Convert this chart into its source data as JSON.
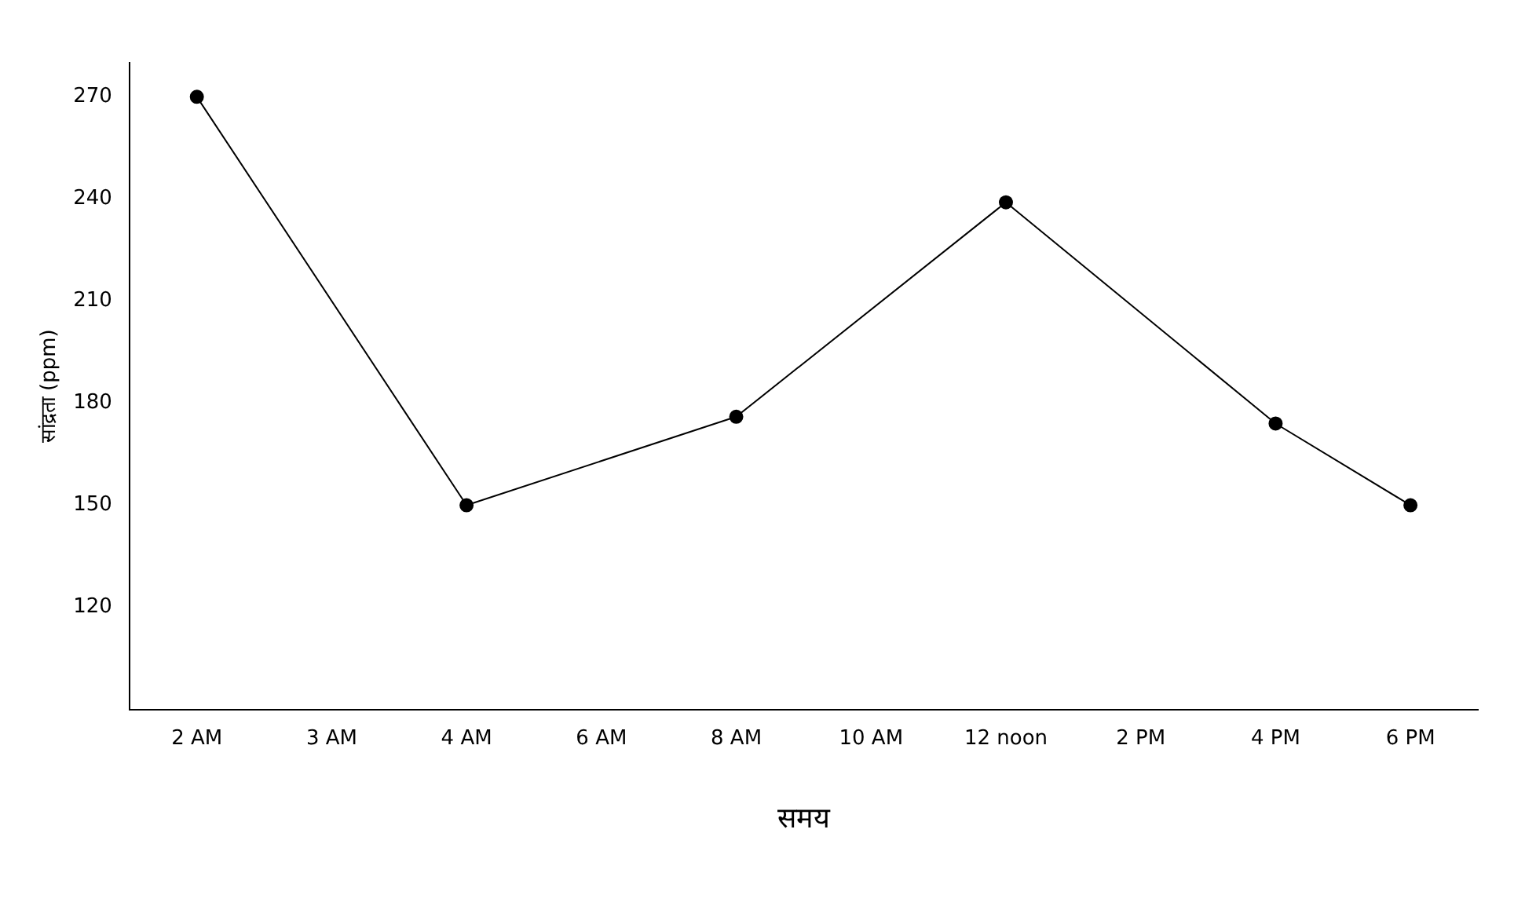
{
  "chart_data": {
    "type": "line",
    "xlabel": "समय",
    "ylabel": "सांद्रता (ppm)",
    "categories": [
      "2 AM",
      "3 AM",
      "4 AM",
      "6 AM",
      "8 AM",
      "10 AM",
      "12 noon",
      "2 PM",
      "4 PM",
      "6 PM"
    ],
    "series": [
      {
        "color": "#000000",
        "values": [
          270,
          null,
          150,
          null,
          176,
          null,
          239,
          null,
          174,
          150
        ]
      }
    ],
    "ylim": [
      90,
      280
    ],
    "yticks": [
      120,
      150,
      180,
      210,
      240,
      270
    ],
    "grid": false,
    "legend": false,
    "marker": "circle",
    "line_style": "solid"
  }
}
